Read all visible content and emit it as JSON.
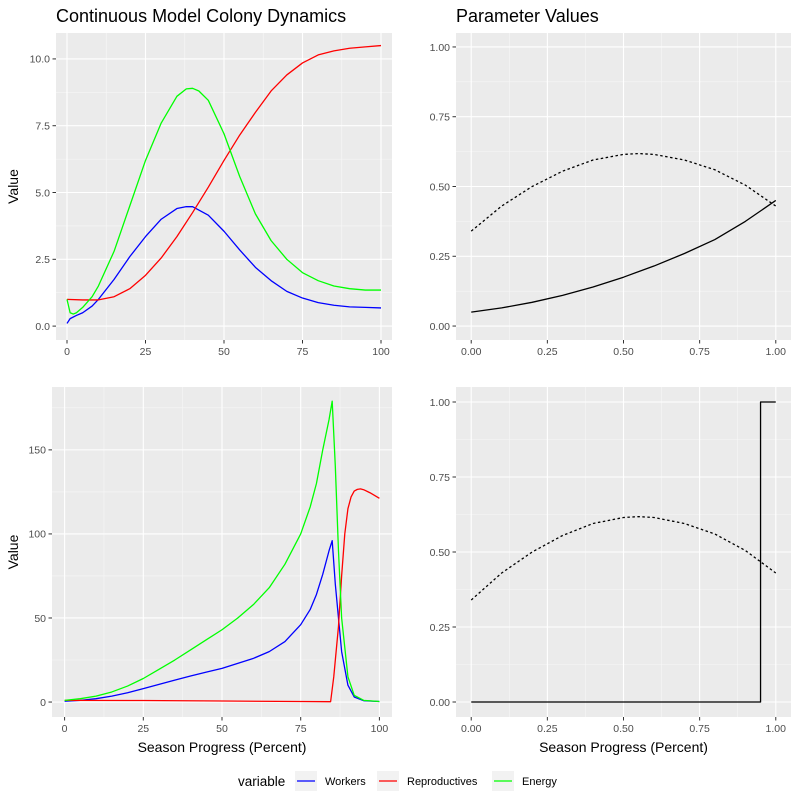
{
  "colors": {
    "workers": "#0000ff",
    "reproductives": "#ff0000",
    "energy": "#00ff00",
    "panel_background": "#ebebeb",
    "grid_major": "#ffffff",
    "parameter_line": "#000000"
  },
  "legend": {
    "title": "variable",
    "position": "bottom",
    "items": [
      {
        "label": "Workers",
        "color": "#0000ff"
      },
      {
        "label": "Reproductives",
        "color": "#ff0000"
      },
      {
        "label": "Energy",
        "color": "#00ff00"
      }
    ]
  },
  "chart_data": [
    {
      "id": "continuous-dynamics",
      "type": "line",
      "title": "Continuous Model Colony Dynamics",
      "xlabel": "",
      "ylabel": "Value",
      "xlim": [
        -3.5,
        103.5
      ],
      "ylim": [
        -0.52,
        10.97
      ],
      "xticks": [
        0,
        25,
        50,
        75,
        100
      ],
      "xtick_labels": [
        "0",
        "25",
        "50",
        "75",
        "100"
      ],
      "yticks": [
        0,
        2.5,
        5,
        7.5,
        10
      ],
      "ytick_labels": [
        "0.0",
        "2.5",
        "5.0",
        "7.5",
        "10.0"
      ],
      "grid": true,
      "series": [
        {
          "name": "Workers",
          "color": "#0000ff",
          "x": [
            0,
            1,
            3,
            5,
            8,
            10,
            15,
            20,
            25,
            30,
            35,
            38,
            40,
            45,
            50,
            55,
            60,
            65,
            70,
            75,
            80,
            85,
            90,
            95,
            100
          ],
          "y": [
            0.1,
            0.28,
            0.4,
            0.5,
            0.75,
            1.0,
            1.75,
            2.6,
            3.35,
            4.0,
            4.4,
            4.47,
            4.47,
            4.15,
            3.55,
            2.85,
            2.2,
            1.7,
            1.3,
            1.05,
            0.88,
            0.78,
            0.72,
            0.7,
            0.68
          ]
        },
        {
          "name": "Reproductives",
          "color": "#ff0000",
          "x": [
            0,
            5,
            10,
            15,
            20,
            25,
            30,
            35,
            40,
            45,
            50,
            55,
            60,
            65,
            70,
            75,
            80,
            85,
            90,
            95,
            100
          ],
          "y": [
            1.0,
            0.98,
            0.98,
            1.1,
            1.4,
            1.9,
            2.55,
            3.35,
            4.25,
            5.2,
            6.2,
            7.15,
            8.0,
            8.8,
            9.4,
            9.85,
            10.15,
            10.3,
            10.4,
            10.45,
            10.5
          ]
        },
        {
          "name": "Energy",
          "color": "#00ff00",
          "x": [
            0,
            1,
            2,
            3,
            5,
            8,
            10,
            15,
            20,
            25,
            30,
            35,
            38,
            40,
            42,
            45,
            50,
            55,
            60,
            65,
            70,
            75,
            80,
            85,
            90,
            95,
            100
          ],
          "y": [
            1.0,
            0.5,
            0.45,
            0.5,
            0.7,
            1.1,
            1.5,
            2.8,
            4.5,
            6.2,
            7.6,
            8.6,
            8.88,
            8.9,
            8.8,
            8.45,
            7.2,
            5.6,
            4.2,
            3.2,
            2.5,
            2.0,
            1.7,
            1.5,
            1.4,
            1.35,
            1.35
          ]
        }
      ]
    },
    {
      "id": "parameter-values-continuous",
      "type": "line",
      "title": "Parameter Values",
      "xlabel": "",
      "ylabel": "",
      "xlim": [
        -0.05,
        1.05
      ],
      "ylim": [
        -0.05,
        1.05
      ],
      "xticks": [
        0,
        0.25,
        0.5,
        0.75,
        1
      ],
      "xtick_labels": [
        "0.00",
        "0.25",
        "0.50",
        "0.75",
        "1.00"
      ],
      "yticks": [
        0,
        0.25,
        0.5,
        0.75,
        1
      ],
      "ytick_labels": [
        "0.00",
        "0.25",
        "0.50",
        "0.75",
        "1.00"
      ],
      "grid": true,
      "series": [
        {
          "style": "dotted",
          "color": "#000000",
          "x": [
            0,
            0.1,
            0.2,
            0.3,
            0.4,
            0.5,
            0.55,
            0.6,
            0.7,
            0.8,
            0.9,
            1.0
          ],
          "y": [
            0.34,
            0.43,
            0.5,
            0.555,
            0.595,
            0.615,
            0.618,
            0.615,
            0.595,
            0.56,
            0.505,
            0.43
          ]
        },
        {
          "style": "solid",
          "color": "#000000",
          "x": [
            0,
            0.1,
            0.2,
            0.3,
            0.4,
            0.5,
            0.6,
            0.7,
            0.8,
            0.9,
            1.0
          ],
          "y": [
            0.05,
            0.065,
            0.085,
            0.11,
            0.14,
            0.175,
            0.215,
            0.26,
            0.31,
            0.375,
            0.45
          ]
        }
      ]
    },
    {
      "id": "discrete-dynamics",
      "type": "line",
      "title": "",
      "xlabel": "Season Progress (Percent)",
      "ylabel": "Value",
      "xlim": [
        -4,
        104
      ],
      "ylim": [
        -8.9,
        187.4
      ],
      "xticks": [
        0,
        25,
        50,
        75,
        100
      ],
      "xtick_labels": [
        "0",
        "25",
        "50",
        "75",
        "100"
      ],
      "yticks": [
        0,
        50,
        100,
        150
      ],
      "ytick_labels": [
        "0",
        "50",
        "100",
        "150"
      ],
      "grid": true,
      "series": [
        {
          "name": "Workers",
          "color": "#0000ff",
          "x": [
            0,
            5,
            10,
            15,
            20,
            25,
            30,
            35,
            40,
            45,
            50,
            55,
            60,
            65,
            70,
            75,
            78,
            80,
            82,
            84,
            85,
            86,
            88,
            90,
            92,
            95,
            100
          ],
          "y": [
            0.5,
            1,
            2,
            3.5,
            5.5,
            8,
            10.5,
            13,
            15.5,
            17.8,
            20,
            23,
            26,
            30,
            36,
            46,
            55,
            64,
            76,
            90,
            96,
            70,
            30,
            10,
            3,
            0.8,
            0.3
          ]
        },
        {
          "name": "Reproductives",
          "color": "#ff0000",
          "x": [
            0,
            25,
            50,
            75,
            84.5,
            85.5,
            87,
            88,
            89,
            90,
            91,
            92,
            93,
            94,
            95,
            97,
            100
          ],
          "y": [
            1,
            0.9,
            0.6,
            0.3,
            0.2,
            15,
            45,
            75,
            100,
            115,
            122,
            125.5,
            126.5,
            126.8,
            126.3,
            124.5,
            121.2
          ]
        },
        {
          "name": "Energy",
          "color": "#00ff00",
          "x": [
            0,
            5,
            10,
            15,
            20,
            25,
            30,
            35,
            40,
            45,
            50,
            55,
            60,
            65,
            70,
            75,
            78,
            80,
            82,
            84,
            85,
            86,
            87,
            88,
            90,
            92,
            95,
            100
          ],
          "y": [
            1,
            2,
            3.5,
            6,
            9.5,
            14,
            19.5,
            25,
            31,
            37,
            43,
            50,
            58,
            68,
            82,
            100,
            116,
            130,
            150,
            168,
            179,
            140,
            90,
            50,
            15,
            4,
            1,
            0.3
          ]
        }
      ]
    },
    {
      "id": "parameter-values-discrete",
      "type": "line",
      "title": "",
      "xlabel": "Season Progress (Percent)",
      "ylabel": "",
      "xlim": [
        -0.05,
        1.05
      ],
      "ylim": [
        -0.05,
        1.05
      ],
      "xticks": [
        0,
        0.25,
        0.5,
        0.75,
        1
      ],
      "xtick_labels": [
        "0.00",
        "0.25",
        "0.50",
        "0.75",
        "1.00"
      ],
      "yticks": [
        0,
        0.25,
        0.5,
        0.75,
        1
      ],
      "ytick_labels": [
        "0.00",
        "0.25",
        "0.50",
        "0.75",
        "1.00"
      ],
      "grid": true,
      "series": [
        {
          "style": "dotted",
          "color": "#000000",
          "x": [
            0,
            0.1,
            0.2,
            0.3,
            0.4,
            0.5,
            0.55,
            0.6,
            0.7,
            0.8,
            0.9,
            1.0
          ],
          "y": [
            0.34,
            0.43,
            0.5,
            0.555,
            0.595,
            0.615,
            0.618,
            0.615,
            0.595,
            0.56,
            0.505,
            0.43
          ]
        },
        {
          "style": "solid",
          "color": "#000000",
          "x": [
            0,
            0.95,
            0.95,
            1.0
          ],
          "y": [
            0,
            0,
            1,
            1
          ]
        }
      ]
    }
  ]
}
